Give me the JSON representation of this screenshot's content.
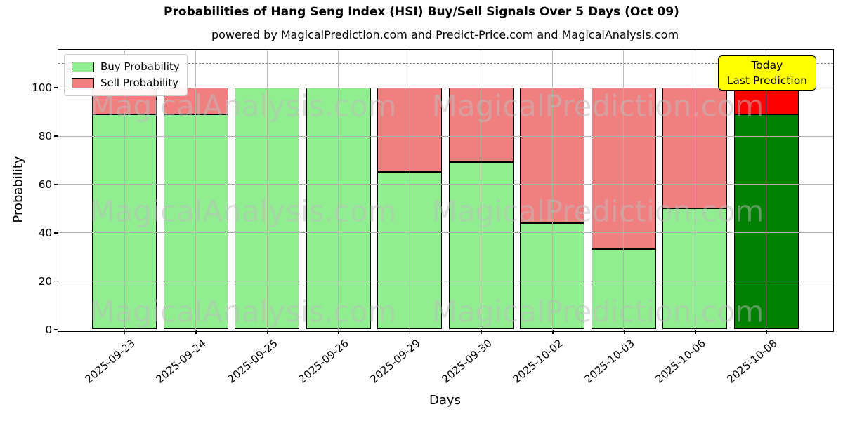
{
  "title": "Probabilities of Hang Seng Index (HSI) Buy/Sell Signals Over 5 Days (Oct 09)",
  "subtitle": "powered by MagicalPrediction.com and Predict-Price.com and MagicalAnalysis.com",
  "chart_data": {
    "type": "bar",
    "stacked": true,
    "title": "Probabilities of Hang Seng Index (HSI) Buy/Sell Signals Over 5 Days (Oct 09)",
    "xlabel": "Days",
    "ylabel": "Probability",
    "categories": [
      "2025-09-23",
      "2025-09-24",
      "2025-09-25",
      "2025-09-26",
      "2025-09-29",
      "2025-09-30",
      "2025-10-02",
      "2025-10-03",
      "2025-10-06",
      "2025-10-08"
    ],
    "series": [
      {
        "name": "Buy Probability",
        "color": "#90EE90",
        "today_color": "#008000",
        "values": [
          89,
          89,
          100,
          100,
          65,
          69,
          44,
          33,
          50,
          89
        ]
      },
      {
        "name": "Sell Probability",
        "color": "#F08080",
        "today_color": "#FF0000",
        "values": [
          11,
          11,
          0,
          0,
          35,
          31,
          56,
          67,
          50,
          11
        ]
      }
    ],
    "today_index": 9,
    "ylim": [
      0,
      115.6
    ],
    "yticks": [
      0,
      20,
      40,
      60,
      80,
      100
    ],
    "grid": true,
    "legend_position": "upper left",
    "threshold_line_y": 110
  },
  "annotation_box": {
    "line1": "Today",
    "line2": "Last Prediction",
    "bg_color": "#FFFF00"
  },
  "watermarks": {
    "left_text": "MagicalAnalysis.com",
    "right_text": "MagicalPrediction.com"
  },
  "colors": {
    "grid": "#b0b0b0",
    "threshold_line": "#7f7f7f",
    "bar_edge": "#000000",
    "axes_frame": "#000000",
    "background": "#ffffff",
    "annotation_bg": "#FFFF00",
    "watermark": "#bdbdbd"
  }
}
